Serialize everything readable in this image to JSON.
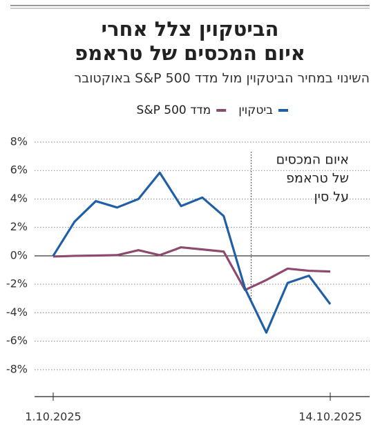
{
  "chart_data": {
    "type": "line",
    "title_lines": [
      "הביטקוין צלל אחרי",
      "איום המכסים של טראמפ"
    ],
    "subtitle": "השינוי במחיר הביטקוין מול מדד S&P 500 באוקטובר",
    "annotation_lines": [
      "איום המכסים",
      "של טראמפ",
      "על סין"
    ],
    "categories": [
      "1.10.2025",
      null,
      null,
      null,
      null,
      null,
      null,
      null,
      null,
      null,
      null,
      null,
      null,
      "14.10.2025"
    ],
    "series": [
      {
        "name": "ביטקוין",
        "color": "#1f5fa6",
        "values": [
          0,
          2.4,
          3.85,
          3.4,
          4.0,
          5.85,
          3.5,
          4.1,
          2.8,
          -2.3,
          -5.4,
          -1.9,
          -1.4,
          -3.4
        ]
      },
      {
        "name": "מדד S&P 500",
        "color": "#8e4a6e",
        "values": [
          -0.05,
          0,
          0.02,
          0.05,
          0.4,
          0.05,
          0.6,
          0.45,
          0.3,
          -2.4,
          -1.7,
          -0.9,
          -1.05,
          -1.1
        ]
      }
    ],
    "ylim": [
      -9.9,
      8
    ],
    "yticks": [
      {
        "value": 8,
        "label": "8%"
      },
      {
        "value": 6,
        "label": "6%"
      },
      {
        "value": 4,
        "label": "4%"
      },
      {
        "value": 2,
        "label": "2%"
      },
      {
        "value": 0,
        "label": "0%"
      },
      {
        "value": -2,
        "label": "-2%"
      },
      {
        "value": -4,
        "label": "-4%"
      },
      {
        "value": -6,
        "label": "-6%"
      },
      {
        "value": -8,
        "label": "-8%"
      }
    ],
    "grid": true
  }
}
